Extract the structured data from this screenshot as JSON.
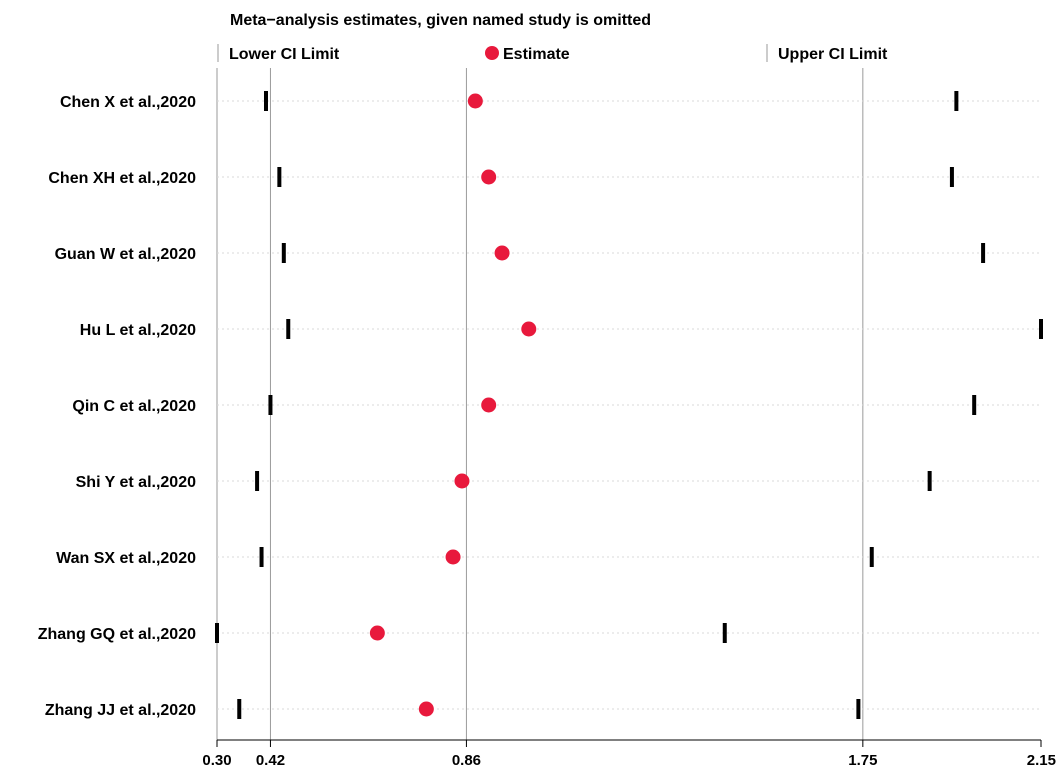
{
  "chart_data": {
    "type": "forest",
    "title": "Meta−analysis estimates, given named study is omitted",
    "legend": {
      "lower": "Lower CI Limit",
      "estimate": "Estimate",
      "upper": "Upper CI Limit"
    },
    "xlim": [
      0.3,
      2.15
    ],
    "ticks": [
      0.3,
      0.42,
      0.86,
      1.75,
      2.15
    ],
    "tick_labels": [
      "0.30",
      "0.42",
      "0.86",
      "1.75",
      "2.15"
    ],
    "reference_lines": [
      0.42,
      0.86,
      1.75
    ],
    "studies": [
      {
        "label": "Chen X et al.,2020",
        "lower": 0.41,
        "estimate": 0.88,
        "upper": 1.96
      },
      {
        "label": "Chen XH et al.,2020",
        "lower": 0.44,
        "estimate": 0.91,
        "upper": 1.95
      },
      {
        "label": "Guan W et al.,2020",
        "lower": 0.45,
        "estimate": 0.94,
        "upper": 2.02
      },
      {
        "label": "Hu L et al.,2020",
        "lower": 0.46,
        "estimate": 1.0,
        "upper": 2.15
      },
      {
        "label": "Qin C et al.,2020",
        "lower": 0.42,
        "estimate": 0.91,
        "upper": 2.0
      },
      {
        "label": "Shi Y et al.,2020",
        "lower": 0.39,
        "estimate": 0.85,
        "upper": 1.9
      },
      {
        "label": "Wan SX et al.,2020",
        "lower": 0.4,
        "estimate": 0.83,
        "upper": 1.77
      },
      {
        "label": "Zhang GQ et al.,2020",
        "lower": 0.3,
        "estimate": 0.66,
        "upper": 1.44
      },
      {
        "label": "Zhang JJ et al.,2020",
        "lower": 0.35,
        "estimate": 0.77,
        "upper": 1.74
      }
    ],
    "colors": {
      "estimate": "#e8193c",
      "ci_mark": "#000000",
      "ref_line": "#9a9a9a",
      "row_line": "#d8d8d8"
    }
  }
}
